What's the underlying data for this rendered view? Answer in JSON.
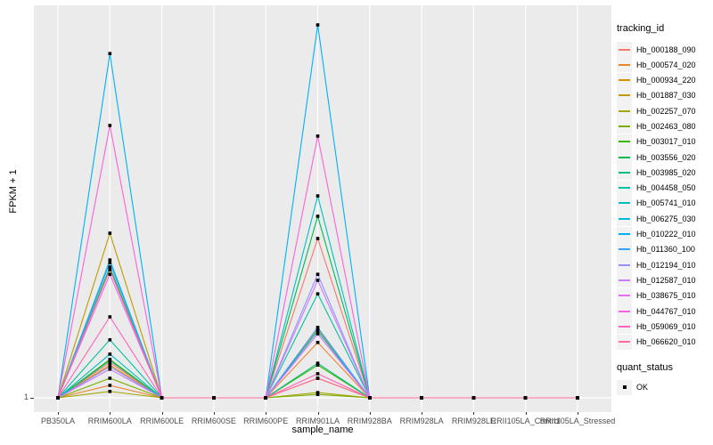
{
  "figure": {
    "y_axis_label": "FPKM + 1",
    "x_axis_label": "sample_name",
    "y_tick_label": "1"
  },
  "legend": {
    "tracking_title": "tracking_id",
    "quant_title": "quant_status",
    "quant_ok_label": "OK"
  },
  "colors": {
    "panel_bg": "#EBEBEB",
    "grid": "#FFFFFF",
    "axis_text": "#4D4D4D",
    "marker": "#000000",
    "legend_key_bg": "#F2F2F2"
  },
  "chart_data": {
    "type": "line",
    "title": "",
    "xlabel": "sample_name",
    "ylabel": "FPKM + 1",
    "categories": [
      "PB350LA",
      "RRIM600LA",
      "RRIM600LE",
      "RRIM600SE",
      "RRIM600PE",
      "RRIM901LA",
      "RRIM928BA",
      "RRIM928LA",
      "RRIM928LE",
      "RRII105LA_Control",
      "RRII105LA_Stressed"
    ],
    "y_tick_labels": [
      "1"
    ],
    "ylim": [
      1,
      100
    ],
    "grid": "major-x",
    "legend_position": "right",
    "point_marker": {
      "shape": "filled-square",
      "color": "#000000",
      "meaning": "quant_status OK at every point"
    },
    "series": [
      {
        "name": "Hb_000188_090",
        "color": "#F8766D",
        "values": [
          1,
          10.4,
          1,
          1,
          1,
          43.3,
          1,
          1,
          1,
          1,
          1
        ]
      },
      {
        "name": "Hb_000574_020",
        "color": "#E9842C",
        "values": [
          1,
          4.3,
          1,
          1,
          1,
          15.7,
          1,
          1,
          1,
          1,
          1
        ]
      },
      {
        "name": "Hb_000934_220",
        "color": "#D89000",
        "values": [
          1,
          9.7,
          1,
          1,
          1,
          6.2,
          1,
          1,
          1,
          1,
          1
        ]
      },
      {
        "name": "Hb_001887_030",
        "color": "#C09B00",
        "values": [
          1,
          44.7,
          1,
          1,
          1,
          19.2,
          1,
          1,
          1,
          1,
          1
        ]
      },
      {
        "name": "Hb_002257_070",
        "color": "#A3A500",
        "values": [
          1,
          2.7,
          1,
          1,
          1,
          2.4,
          1,
          1,
          1,
          1,
          1
        ]
      },
      {
        "name": "Hb_002463_080",
        "color": "#7CAE00",
        "values": [
          1,
          6.2,
          1,
          1,
          1,
          1.9,
          1,
          1,
          1,
          1,
          1
        ]
      },
      {
        "name": "Hb_003017_010",
        "color": "#39B600",
        "values": [
          1,
          11.2,
          1,
          1,
          1,
          9.7,
          1,
          1,
          1,
          1,
          1
        ]
      },
      {
        "name": "Hb_003556_020",
        "color": "#00BB4E",
        "values": [
          1,
          35.7,
          1,
          1,
          1,
          49.2,
          1,
          1,
          1,
          1,
          1
        ]
      },
      {
        "name": "Hb_003985_020",
        "color": "#00BF7D",
        "values": [
          1,
          10.9,
          1,
          1,
          1,
          10.2,
          1,
          1,
          1,
          1,
          1
        ]
      },
      {
        "name": "Hb_004458_050",
        "color": "#00C1A3",
        "values": [
          1,
          16.4,
          1,
          1,
          1,
          28.6,
          1,
          1,
          1,
          1,
          1
        ]
      },
      {
        "name": "Hb_005741_010",
        "color": "#00BFC4",
        "values": [
          1,
          12.6,
          1,
          1,
          1,
          54.6,
          1,
          1,
          1,
          1,
          1
        ]
      },
      {
        "name": "Hb_006275_030",
        "color": "#00BAE0",
        "values": [
          1,
          37.6,
          1,
          1,
          1,
          18.7,
          1,
          1,
          1,
          1,
          1
        ]
      },
      {
        "name": "Hb_010222_010",
        "color": "#00B0F6",
        "values": [
          1,
          92.4,
          1,
          1,
          1,
          100,
          1,
          1,
          1,
          1,
          1
        ]
      },
      {
        "name": "Hb_011360_100",
        "color": "#35A2FF",
        "values": [
          1,
          36.9,
          1,
          1,
          1,
          19.7,
          1,
          1,
          1,
          1,
          1
        ]
      },
      {
        "name": "Hb_012194_010",
        "color": "#9590FF",
        "values": [
          1,
          9.3,
          1,
          1,
          1,
          33.8,
          1,
          1,
          1,
          1,
          1
        ]
      },
      {
        "name": "Hb_012587_010",
        "color": "#C77CFF",
        "values": [
          1,
          8.6,
          1,
          1,
          1,
          32.2,
          1,
          1,
          1,
          1,
          1
        ]
      },
      {
        "name": "Hb_038675_010",
        "color": "#E76BF3",
        "values": [
          1,
          33.8,
          1,
          1,
          1,
          18.0,
          1,
          1,
          1,
          1,
          1
        ]
      },
      {
        "name": "Hb_044767_010",
        "color": "#FA62DB",
        "values": [
          1,
          73.3,
          1,
          1,
          1,
          70.5,
          1,
          1,
          1,
          1,
          1
        ]
      },
      {
        "name": "Hb_059069_010",
        "color": "#FF62BC",
        "values": [
          1,
          22.5,
          1,
          1,
          1,
          7.4,
          1,
          1,
          1,
          1,
          1
        ]
      },
      {
        "name": "Hb_066620_010",
        "color": "#FF6A98",
        "values": [
          1,
          35.0,
          1,
          1,
          1,
          6.2,
          1,
          1,
          1,
          1,
          1
        ]
      }
    ]
  }
}
